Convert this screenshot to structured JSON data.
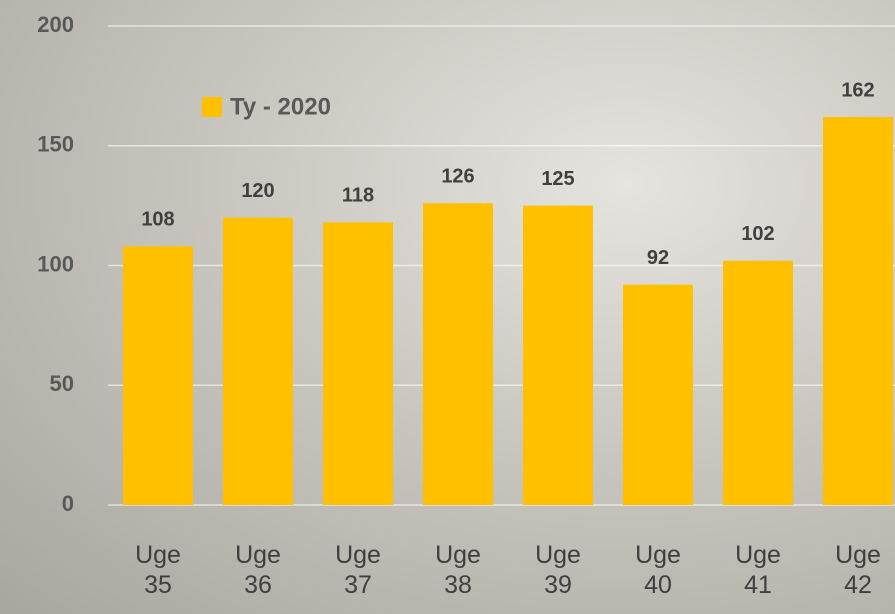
{
  "chart_data": {
    "type": "bar",
    "categories": [
      "Uge 35",
      "Uge 36",
      "Uge 37",
      "Uge 38",
      "Uge 39",
      "Uge 40",
      "Uge 41",
      "Uge 42"
    ],
    "series": [
      {
        "name": "Ty - 2020",
        "color": "#FFC000",
        "values": [
          108,
          120,
          118,
          126,
          125,
          92,
          102,
          162
        ]
      }
    ],
    "ylim": [
      0,
      200
    ],
    "yticks": [
      0,
      50,
      100,
      150,
      200
    ],
    "grid": true,
    "legend": "top-left"
  }
}
